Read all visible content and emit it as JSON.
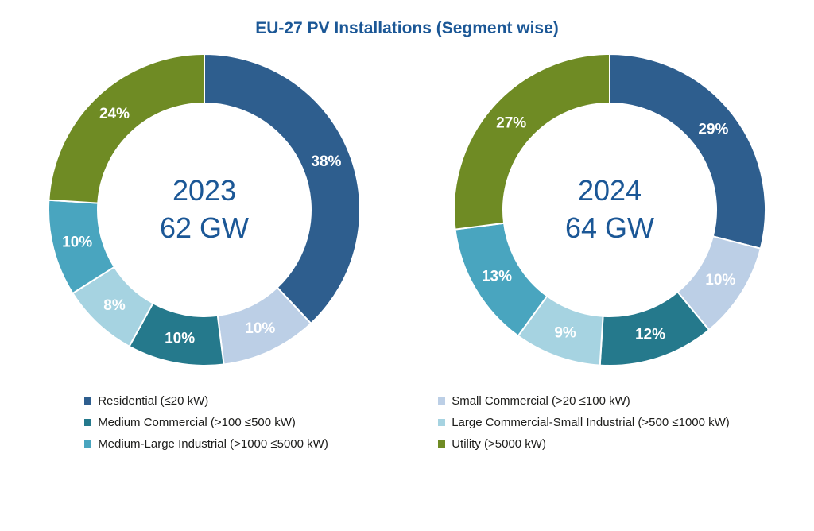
{
  "title": "EU-27 PV Installations (Segment wise)",
  "accent_color": "#1b5796",
  "chart_data": [
    {
      "type": "pie",
      "style": "donut",
      "start_angle": "top",
      "direction": "clockwise",
      "center_lines": [
        "2023",
        "62 GW"
      ],
      "year": 2023,
      "total_gw": 62,
      "segments": [
        {
          "label": "Residential (≤20 kW)",
          "value_pct": 38,
          "color": "#2e5e8e"
        },
        {
          "label": "Small Commercial (>20 ≤100 kW)",
          "value_pct": 10,
          "color": "#bccfe6"
        },
        {
          "label": "Medium Commercial (>100 ≤500 kW)",
          "value_pct": 10,
          "color": "#25798c"
        },
        {
          "label": "Large Commercial-Small Industrial (>500 ≤1000 kW)",
          "value_pct": 8,
          "color": "#a6d3e1"
        },
        {
          "label": "Medium-Large Industrial (>1000 ≤5000 kW)",
          "value_pct": 10,
          "color": "#49a5bf"
        },
        {
          "label": "Utility (>5000 kW)",
          "value_pct": 24,
          "color": "#6f8b24"
        }
      ]
    },
    {
      "type": "pie",
      "style": "donut",
      "start_angle": "top",
      "direction": "clockwise",
      "center_lines": [
        "2024",
        "64 GW"
      ],
      "year": 2024,
      "total_gw": 64,
      "segments": [
        {
          "label": "Residential (≤20 kW)",
          "value_pct": 29,
          "color": "#2e5e8e"
        },
        {
          "label": "Small Commercial (>20 ≤100 kW)",
          "value_pct": 10,
          "color": "#bccfe6"
        },
        {
          "label": "Medium Commercial (>100 ≤500 kW)",
          "value_pct": 12,
          "color": "#25798c"
        },
        {
          "label": "Large Commercial-Small Industrial (>500 ≤1000 kW)",
          "value_pct": 9,
          "color": "#a6d3e1"
        },
        {
          "label": "Medium-Large Industrial (>1000 ≤5000 kW)",
          "value_pct": 13,
          "color": "#49a5bf"
        },
        {
          "label": "Utility (>5000 kW)",
          "value_pct": 27,
          "color": "#6f8b24"
        }
      ]
    }
  ],
  "legend": {
    "columns": [
      {
        "items": [
          {
            "label": "Residential (≤20 kW)",
            "color": "#2e5e8e"
          },
          {
            "label": "Medium Commercial (>100 ≤500 kW)",
            "color": "#25798c"
          },
          {
            "label": "Medium-Large Industrial (>1000 ≤5000 kW)",
            "color": "#49a5bf"
          }
        ]
      },
      {
        "items": [
          {
            "label": "Small Commercial (>20 ≤100 kW)",
            "color": "#bccfe6"
          },
          {
            "label": "Large Commercial-Small Industrial (>500 ≤1000 kW)",
            "color": "#a6d3e1"
          },
          {
            "label": "Utility (>5000 kW)",
            "color": "#6f8b24"
          }
        ]
      }
    ]
  }
}
